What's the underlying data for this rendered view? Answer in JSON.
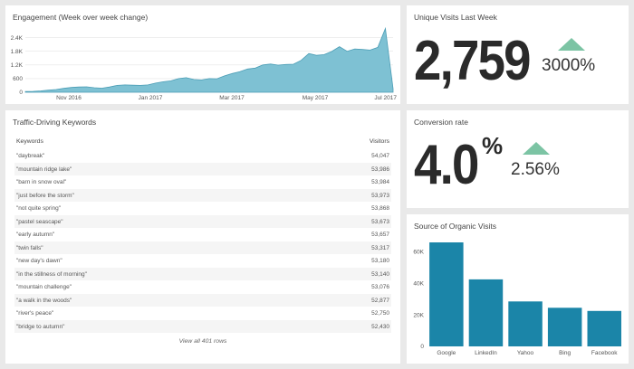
{
  "engagement": {
    "title": "Engagement (Week over week change)",
    "chart_data": {
      "type": "area",
      "title": "Engagement (Week over week change)",
      "ylim": [
        0,
        2700
      ],
      "yticks": [
        "0",
        "600",
        "1.2K",
        "1.8K",
        "2.4K"
      ],
      "ytick_values": [
        0,
        600,
        1200,
        1800,
        2400
      ],
      "xticks": [
        "Nov 2016",
        "Jan 2017",
        "Mar 2017",
        "May 2017",
        "Jul 2017"
      ],
      "color": "#7ec1d3",
      "values": [
        30,
        40,
        60,
        90,
        120,
        170,
        210,
        230,
        240,
        200,
        180,
        230,
        300,
        320,
        310,
        300,
        320,
        400,
        460,
        500,
        600,
        640,
        560,
        540,
        600,
        590,
        720,
        820,
        900,
        1020,
        1060,
        1200,
        1240,
        1190,
        1220,
        1230,
        1400,
        1700,
        1620,
        1650,
        1790,
        2000,
        1800,
        1900,
        1880,
        1850,
        1970,
        2800,
        150
      ]
    }
  },
  "keywords": {
    "title": "Traffic-Driving Keywords",
    "col_keywords": "Keywords",
    "col_visitors": "Visitors",
    "rows": [
      {
        "k": "\"daybreak\"",
        "v": "54,047"
      },
      {
        "k": "\"mountain ridge lake\"",
        "v": "53,986"
      },
      {
        "k": "\"barn in snow oval\"",
        "v": "53,984"
      },
      {
        "k": "\"just before the storm\"",
        "v": "53,973"
      },
      {
        "k": "\"not quite spring\"",
        "v": "53,868"
      },
      {
        "k": "\"pastel seascape\"",
        "v": "53,673"
      },
      {
        "k": "\"early autumn\"",
        "v": "53,657"
      },
      {
        "k": "\"twin falls\"",
        "v": "53,317"
      },
      {
        "k": "\"new day's dawn\"",
        "v": "53,180"
      },
      {
        "k": "\"in the stillness of morning\"",
        "v": "53,140"
      },
      {
        "k": "\"mountain challenge\"",
        "v": "53,076"
      },
      {
        "k": "\"a walk in the woods\"",
        "v": "52,877"
      },
      {
        "k": "\"river's peace\"",
        "v": "52,750"
      },
      {
        "k": "\"bridge to autumn\"",
        "v": "52,430"
      }
    ],
    "view_all": "View all 401 rows"
  },
  "unique_visits": {
    "title": "Unique Visits Last Week",
    "value": "2,759",
    "change": "3000%",
    "trend_icon": "up-triangle-icon",
    "trend_color": "#7cc4a4"
  },
  "conversion": {
    "title": "Conversion rate",
    "value": "4.0",
    "unit": "%",
    "change": "2.56%",
    "trend_icon": "up-triangle-icon",
    "trend_color": "#7cc4a4"
  },
  "organic": {
    "title": "Source of Organic Visits",
    "chart_data": {
      "type": "bar",
      "title": "Source of Organic Visits",
      "categories": [
        "Google",
        "LinkedIn",
        "Yahoo",
        "Bing",
        "Facebook"
      ],
      "values": [
        66000,
        42500,
        28500,
        24500,
        22500
      ],
      "ylim": [
        0,
        70000
      ],
      "yticks": [
        "0",
        "20K",
        "40K",
        "60K"
      ],
      "ytick_values": [
        0,
        20000,
        40000,
        60000
      ],
      "color": "#1b85a8"
    }
  }
}
